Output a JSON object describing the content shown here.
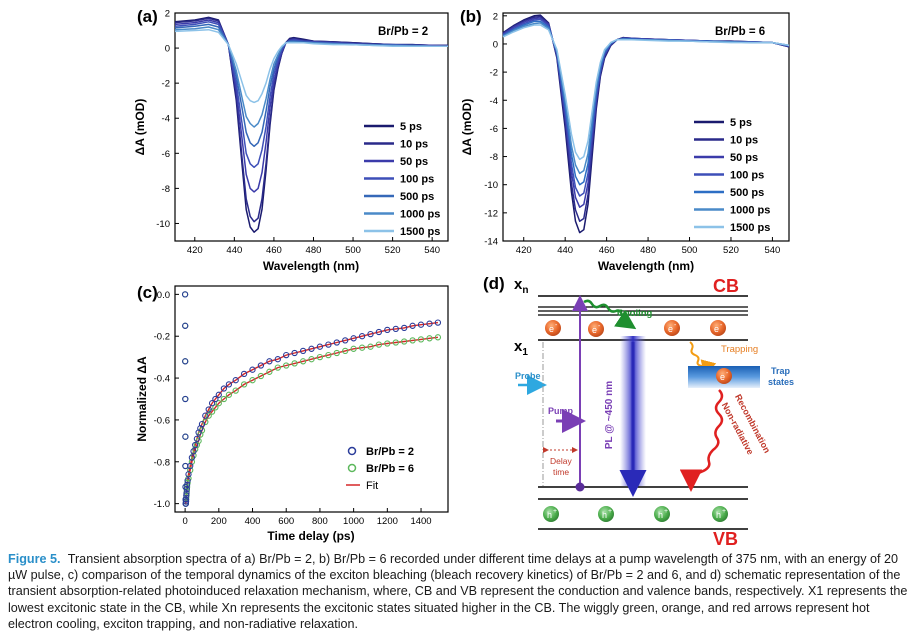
{
  "panels": {
    "a": {
      "label": "(a)",
      "ratio_text": "Br/Pb = 2",
      "xlabel": "Wavelength (nm)",
      "ylabel": "ΔA (mOD)",
      "xticks": [
        "420",
        "440",
        "460",
        "480",
        "500",
        "520",
        "540"
      ],
      "yticks": [
        "2",
        "0",
        "-2",
        "-4",
        "-6",
        "-8",
        "-10"
      ],
      "legend": [
        "5 ps",
        "10 ps",
        "50 ps",
        "100 ps",
        "500 ps",
        "1000 ps",
        "1500 ps"
      ]
    },
    "b": {
      "label": "(b)",
      "ratio_text": "Br/Pb = 6",
      "xlabel": "Wavelength (nm)",
      "ylabel": "ΔA (mOD)",
      "xticks": [
        "420",
        "440",
        "460",
        "480",
        "500",
        "520",
        "540"
      ],
      "yticks": [
        "2",
        "0",
        "-2",
        "-4",
        "-6",
        "-8",
        "-10",
        "-12",
        "-14"
      ],
      "legend": [
        "5 ps",
        "10 ps",
        "50 ps",
        "100 ps",
        "500 ps",
        "1000 ps",
        "1500 ps"
      ]
    },
    "c": {
      "label": "(c)",
      "xlabel": "Time delay (ps)",
      "ylabel": "Normalized ΔA",
      "xticks": [
        "0",
        "200",
        "400",
        "600",
        "800",
        "1000",
        "1200",
        "1400"
      ],
      "yticks": [
        "0.0",
        "-0.2",
        "-0.4",
        "-0.6",
        "-0.8",
        "-1.0"
      ],
      "legend": [
        "Br/Pb = 2",
        "Br/Pb = 6",
        "Fit"
      ]
    },
    "d": {
      "label": "(d)",
      "xn": "x",
      "xn_sub": "n",
      "x1": "x",
      "x1_sub": "1",
      "cb": "CB",
      "vb": "VB",
      "cooling": "Cooling",
      "trapping": "Trapping",
      "trap_states_1": "Trap",
      "trap_states_2": "states",
      "probe": "Probe",
      "pump": "Pump",
      "delay_1": "Delay",
      "delay_2": "time",
      "pl": "PL @ ~450 nm",
      "nonrad_1": "Non-radiative",
      "nonrad_2": "Recombination",
      "electron": "e",
      "electron_sup": "-",
      "hole": "h",
      "hole_sup": "+"
    }
  },
  "caption": {
    "label": "Figure 5.",
    "text": "Transient absorption spectra of a) Br/Pb = 2, b) Br/Pb = 6 recorded under different time delays at a pump wavelength of 375 nm, with an energy of 20 µW pulse, c) comparison of the temporal dynamics of the exciton bleaching (bleach recovery kinetics) of Br/Pb = 2 and 6, and d) schematic representation of the transient absorption-related photoinduced relaxation mechanism, where, CB and VB represent the conduction and valence bands, respectively. X1 represents the lowest excitonic state in the CB, while Xn represents the excitonic states situated higher in the CB. The wiggly green, orange, and red arrows represent hot electron cooling, exciton trapping, and non-radiative relaxation."
  },
  "chart_data": [
    {
      "type": "line",
      "panel": "a",
      "xlabel": "Wavelength (nm)",
      "ylabel": "ΔA (mOD)",
      "xlim": [
        410,
        548
      ],
      "ylim": [
        -11,
        2
      ],
      "x": [
        410,
        420,
        427,
        432,
        437,
        441,
        444,
        446,
        448,
        450,
        452,
        454,
        456,
        458,
        460,
        462,
        464,
        466,
        468,
        470,
        475,
        480,
        490,
        500,
        510,
        520,
        530,
        540,
        548
      ],
      "series": [
        {
          "name": "5 ps",
          "color": "#1a1a6e",
          "values": [
            1.5,
            1.6,
            1.75,
            1.6,
            0.2,
            -3.0,
            -6.8,
            -9.2,
            -10.2,
            -10.5,
            -10.3,
            -9.2,
            -7.0,
            -4.4,
            -2.4,
            -1.2,
            -0.3,
            0.3,
            0.55,
            0.6,
            0.5,
            0.4,
            0.35,
            0.3,
            0.25,
            0.2,
            0.2,
            0.15,
            0.15
          ]
        },
        {
          "name": "10 ps",
          "color": "#2a2a8a",
          "values": [
            1.45,
            1.55,
            1.7,
            1.55,
            0.2,
            -2.8,
            -6.4,
            -8.6,
            -9.6,
            -9.9,
            -9.7,
            -8.6,
            -6.6,
            -4.2,
            -2.3,
            -1.1,
            -0.3,
            0.3,
            0.5,
            0.55,
            0.45,
            0.4,
            0.35,
            0.3,
            0.25,
            0.2,
            0.2,
            0.15,
            0.15
          ]
        },
        {
          "name": "50 ps",
          "color": "#3b3baa",
          "values": [
            1.35,
            1.45,
            1.6,
            1.45,
            0.2,
            -2.4,
            -5.3,
            -7.2,
            -8.0,
            -8.2,
            -8.0,
            -7.1,
            -5.4,
            -3.4,
            -1.9,
            -0.9,
            -0.2,
            0.3,
            0.45,
            0.5,
            0.4,
            0.35,
            0.3,
            0.25,
            0.2,
            0.2,
            0.15,
            0.15,
            0.1
          ]
        },
        {
          "name": "100 ps",
          "color": "#3d4fb8",
          "values": [
            1.25,
            1.35,
            1.5,
            1.35,
            0.2,
            -2.0,
            -4.4,
            -6.0,
            -6.6,
            -6.8,
            -6.6,
            -5.8,
            -4.5,
            -2.8,
            -1.5,
            -0.7,
            -0.1,
            0.3,
            0.4,
            0.45,
            0.4,
            0.35,
            0.3,
            0.25,
            0.2,
            0.2,
            0.15,
            0.1,
            0.1
          ]
        },
        {
          "name": "500 ps",
          "color": "#3568b8",
          "values": [
            1.15,
            1.25,
            1.35,
            1.2,
            0.2,
            -1.6,
            -3.5,
            -4.8,
            -5.4,
            -5.6,
            -5.4,
            -4.8,
            -3.6,
            -2.2,
            -1.2,
            -0.5,
            0.0,
            0.3,
            0.4,
            0.4,
            0.35,
            0.3,
            0.25,
            0.2,
            0.2,
            0.15,
            0.15,
            0.1,
            0.1
          ]
        },
        {
          "name": "1000 ps",
          "color": "#4a8ac8",
          "values": [
            1.05,
            1.1,
            1.2,
            1.05,
            0.2,
            -1.3,
            -2.9,
            -3.9,
            -4.3,
            -4.5,
            -4.3,
            -3.8,
            -2.9,
            -1.8,
            -0.9,
            -0.4,
            0.05,
            0.3,
            0.35,
            0.35,
            0.3,
            0.3,
            0.25,
            0.2,
            0.15,
            0.15,
            0.1,
            0.1,
            0.1
          ]
        },
        {
          "name": "1500 ps",
          "color": "#8cc2e8",
          "values": [
            0.95,
            1.0,
            1.05,
            0.9,
            0.2,
            -0.9,
            -2.0,
            -2.7,
            -3.0,
            -3.1,
            -3.0,
            -2.6,
            -2.0,
            -1.2,
            -0.6,
            -0.2,
            0.1,
            0.3,
            0.3,
            0.3,
            0.3,
            0.25,
            0.2,
            0.2,
            0.15,
            0.1,
            0.1,
            0.1,
            0.1
          ]
        }
      ]
    },
    {
      "type": "line",
      "panel": "b",
      "xlabel": "Wavelength (nm)",
      "ylabel": "ΔA (mOD)",
      "xlim": [
        410,
        548
      ],
      "ylim": [
        -14,
        2.2
      ],
      "x": [
        410,
        415,
        420,
        425,
        428,
        432,
        436,
        440,
        443,
        445,
        447,
        449,
        451,
        453,
        455,
        457,
        459,
        462,
        465,
        468,
        472,
        480,
        490,
        500,
        510,
        520,
        530,
        540,
        548
      ],
      "series": [
        {
          "name": "5 ps",
          "color": "#1a1a6e",
          "values": [
            0.8,
            1.3,
            1.7,
            2.0,
            2.05,
            1.5,
            -1.0,
            -6.0,
            -10.5,
            -12.6,
            -13.4,
            -13.2,
            -11.4,
            -8.0,
            -4.6,
            -2.3,
            -1.0,
            -0.1,
            0.3,
            0.45,
            0.4,
            0.35,
            0.3,
            0.25,
            0.2,
            0.2,
            0.15,
            0.1,
            -0.2
          ]
        },
        {
          "name": "10 ps",
          "color": "#2a2a8a",
          "values": [
            0.75,
            1.25,
            1.65,
            1.9,
            1.95,
            1.45,
            -0.9,
            -5.6,
            -9.9,
            -11.8,
            -12.6,
            -12.4,
            -10.7,
            -7.5,
            -4.3,
            -2.2,
            -0.9,
            -0.1,
            0.3,
            0.45,
            0.4,
            0.35,
            0.3,
            0.25,
            0.2,
            0.2,
            0.15,
            0.1,
            -0.2
          ]
        },
        {
          "name": "50 ps",
          "color": "#3b3baa",
          "values": [
            0.7,
            1.2,
            1.55,
            1.8,
            1.85,
            1.4,
            -0.8,
            -5.2,
            -9.1,
            -10.9,
            -11.6,
            -11.4,
            -9.9,
            -6.9,
            -4.0,
            -2.0,
            -0.8,
            0.0,
            0.3,
            0.4,
            0.4,
            0.35,
            0.3,
            0.25,
            0.2,
            0.15,
            0.15,
            0.1,
            -0.15
          ]
        },
        {
          "name": "100 ps",
          "color": "#3d4fb8",
          "values": [
            0.65,
            1.1,
            1.45,
            1.7,
            1.75,
            1.3,
            -0.7,
            -4.8,
            -8.5,
            -10.2,
            -10.8,
            -10.6,
            -9.2,
            -6.4,
            -3.7,
            -1.9,
            -0.7,
            0.0,
            0.3,
            0.4,
            0.35,
            0.3,
            0.3,
            0.25,
            0.2,
            0.15,
            0.15,
            0.1,
            -0.15
          ]
        },
        {
          "name": "500 ps",
          "color": "#2d6ec4",
          "values": [
            0.6,
            1.0,
            1.35,
            1.6,
            1.6,
            1.2,
            -0.6,
            -4.4,
            -7.8,
            -9.4,
            -10.0,
            -9.8,
            -8.5,
            -5.9,
            -3.4,
            -1.7,
            -0.6,
            0.05,
            0.3,
            0.35,
            0.35,
            0.3,
            0.25,
            0.2,
            0.2,
            0.15,
            0.1,
            0.1,
            -0.1
          ]
        },
        {
          "name": "1000 ps",
          "color": "#4a8ac8",
          "values": [
            0.55,
            0.95,
            1.25,
            1.45,
            1.5,
            1.1,
            -0.5,
            -4.0,
            -7.2,
            -8.6,
            -9.2,
            -9.0,
            -7.8,
            -5.4,
            -3.1,
            -1.5,
            -0.5,
            0.1,
            0.3,
            0.35,
            0.3,
            0.3,
            0.25,
            0.2,
            0.15,
            0.15,
            0.1,
            0.1,
            -0.1
          ]
        },
        {
          "name": "1500 ps",
          "color": "#8cc2e8",
          "values": [
            0.5,
            0.85,
            1.15,
            1.35,
            1.35,
            1.0,
            -0.4,
            -3.6,
            -6.4,
            -7.7,
            -8.2,
            -8.0,
            -6.9,
            -4.8,
            -2.7,
            -1.3,
            -0.4,
            0.1,
            0.3,
            0.3,
            0.3,
            0.25,
            0.2,
            0.2,
            0.15,
            0.1,
            0.1,
            0.1,
            -0.1
          ]
        }
      ]
    },
    {
      "type": "scatter",
      "panel": "c",
      "xlabel": "Time delay (ps)",
      "ylabel": "Normalized ΔA",
      "xlim": [
        -60,
        1560
      ],
      "ylim": [
        -1.04,
        0.04
      ],
      "series": [
        {
          "name": "Br/Pb = 2",
          "color": "#2a3c9a",
          "kind": "points",
          "x": [
            0,
            0.3,
            0.6,
            1,
            1.5,
            2,
            2.5,
            3,
            3.5,
            4,
            5,
            6,
            7,
            8,
            10,
            12,
            15,
            20,
            30,
            40,
            50,
            60,
            70,
            80,
            90,
            100,
            120,
            140,
            160,
            180,
            200,
            230,
            260,
            300,
            350,
            400,
            450,
            500,
            550,
            600,
            650,
            700,
            750,
            800,
            850,
            900,
            950,
            1000,
            1050,
            1100,
            1150,
            1200,
            1250,
            1300,
            1350,
            1400,
            1450,
            1500
          ],
          "y": [
            0.0,
            -0.15,
            -0.32,
            -0.5,
            -0.68,
            -0.82,
            -0.92,
            -0.98,
            -1.0,
            -1.0,
            -0.99,
            -0.98,
            -0.96,
            -0.95,
            -0.93,
            -0.91,
            -0.89,
            -0.86,
            -0.82,
            -0.78,
            -0.75,
            -0.72,
            -0.69,
            -0.66,
            -0.64,
            -0.62,
            -0.58,
            -0.55,
            -0.52,
            -0.5,
            -0.48,
            -0.45,
            -0.43,
            -0.41,
            -0.38,
            -0.36,
            -0.34,
            -0.32,
            -0.31,
            -0.29,
            -0.28,
            -0.27,
            -0.26,
            -0.25,
            -0.24,
            -0.23,
            -0.22,
            -0.21,
            -0.2,
            -0.19,
            -0.18,
            -0.17,
            -0.165,
            -0.16,
            -0.15,
            -0.145,
            -0.14,
            -0.135
          ]
        },
        {
          "name": "Br/Pb = 6",
          "color": "#5cb85c",
          "kind": "points",
          "x": [
            0,
            0.3,
            0.6,
            1,
            1.5,
            2,
            2.5,
            3,
            3.5,
            4,
            5,
            6,
            7,
            8,
            10,
            12,
            15,
            20,
            30,
            40,
            50,
            60,
            70,
            80,
            90,
            100,
            120,
            140,
            160,
            180,
            200,
            230,
            260,
            300,
            350,
            400,
            450,
            500,
            550,
            600,
            650,
            700,
            750,
            800,
            850,
            900,
            950,
            1000,
            1050,
            1100,
            1150,
            1200,
            1250,
            1300,
            1350,
            1400,
            1450,
            1500
          ],
          "y": [
            0.0,
            -0.15,
            -0.32,
            -0.5,
            -0.68,
            -0.82,
            -0.92,
            -0.98,
            -1.0,
            -1.0,
            -0.99,
            -0.98,
            -0.97,
            -0.96,
            -0.94,
            -0.92,
            -0.9,
            -0.88,
            -0.84,
            -0.8,
            -0.77,
            -0.74,
            -0.72,
            -0.7,
            -0.67,
            -0.65,
            -0.61,
            -0.58,
            -0.56,
            -0.54,
            -0.52,
            -0.5,
            -0.48,
            -0.46,
            -0.43,
            -0.41,
            -0.39,
            -0.37,
            -0.35,
            -0.34,
            -0.33,
            -0.32,
            -0.31,
            -0.3,
            -0.29,
            -0.28,
            -0.27,
            -0.26,
            -0.255,
            -0.25,
            -0.24,
            -0.235,
            -0.23,
            -0.225,
            -0.22,
            -0.215,
            -0.21,
            -0.205
          ]
        },
        {
          "name": "Fit",
          "color": "#d62728",
          "kind": "line"
        }
      ]
    }
  ]
}
